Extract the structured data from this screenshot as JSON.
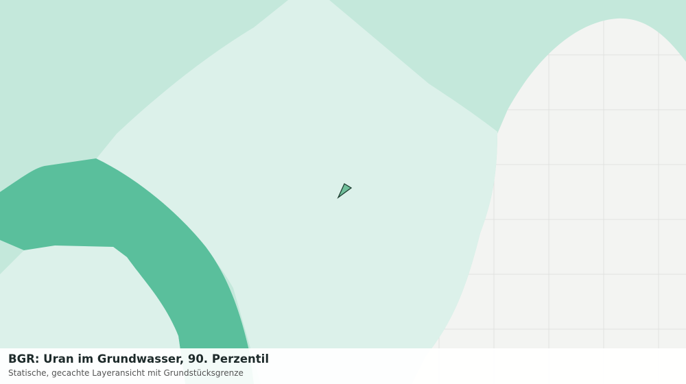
{
  "title": "BGR: Uran im Grundwasser, 90. Perzentil",
  "subtitle": "Statische, gecachte Layeransicht mit Grundstücksgrenze"
}
